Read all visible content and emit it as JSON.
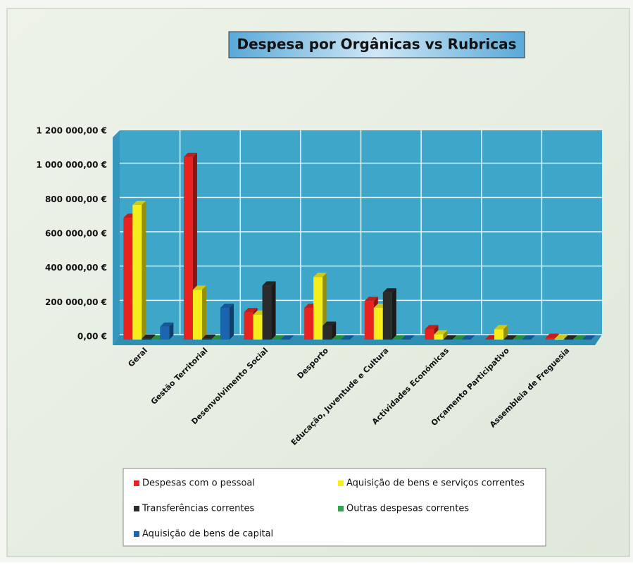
{
  "chart_data": {
    "type": "bar",
    "title": "Despesa por Orgânicas  vs  Rubricas",
    "categories": [
      "Geral",
      "Gestão Territorial",
      "Desenvolvimento Social",
      "Desporto",
      "Educação, Juventude e Cultura",
      "Actividades Económicas",
      "Orçamento Participativo",
      "Assembleia de Freguesia"
    ],
    "series": [
      {
        "name": "Despesas com o pessoal",
        "color": "#e8231f",
        "values": [
          710000,
          1065000,
          160000,
          185000,
          225000,
          60000,
          2000,
          10000
        ]
      },
      {
        "name": "Aquisição de bens e serviços correntes",
        "color": "#f5ee1a",
        "values": [
          785000,
          290000,
          145000,
          365000,
          185000,
          30000,
          60000,
          5000
        ]
      },
      {
        "name": "Transferências correntes",
        "color": "#2b2b2b",
        "values": [
          5000,
          5000,
          315000,
          80000,
          275000,
          0,
          0,
          0
        ]
      },
      {
        "name": "Outras despesas correntes",
        "color": "#2fa64a",
        "values": [
          0,
          0,
          0,
          0,
          0,
          0,
          0,
          0
        ]
      },
      {
        "name": "Aquisição de bens de capital",
        "color": "#1b65b0",
        "values": [
          75000,
          185000,
          0,
          0,
          0,
          0,
          0,
          0
        ]
      }
    ],
    "ylim": [
      0,
      1200000
    ],
    "yticks": [
      {
        "value": 0,
        "label": "0,00 €"
      },
      {
        "value": 200000,
        "label": "200 000,00 €"
      },
      {
        "value": 400000,
        "label": "400 000,00 €"
      },
      {
        "value": 600000,
        "label": "600 000,00 €"
      },
      {
        "value": 800000,
        "label": "800 000,00 €"
      },
      {
        "value": 1000000,
        "label": "1 000 000,00 €"
      },
      {
        "value": 1200000,
        "label": "1 200 000,00 €"
      }
    ],
    "grid": true
  }
}
